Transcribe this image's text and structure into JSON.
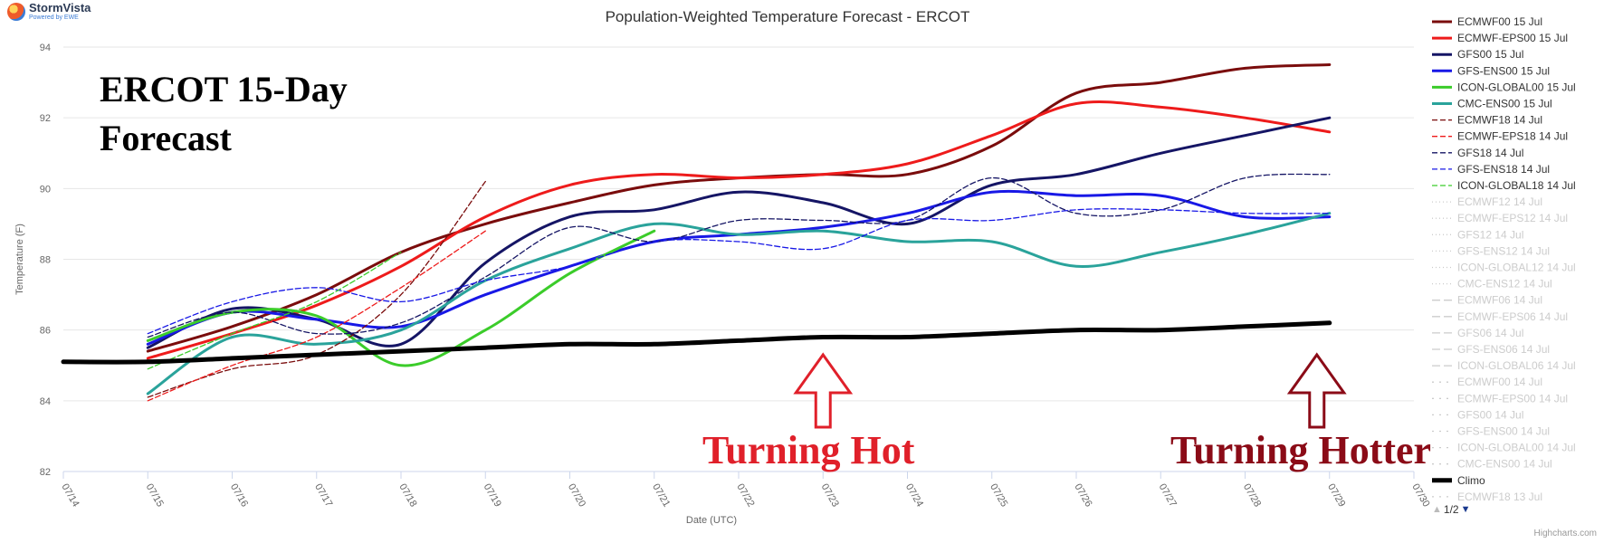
{
  "brand": {
    "name": "StormVista",
    "sub": "Powered by EWE"
  },
  "credit": "Highcharts.com",
  "pager": {
    "text": "1/2"
  },
  "chart_data": {
    "type": "line",
    "title": "Population-Weighted Temperature Forecast - ERCOT",
    "xlabel": "Date (UTC)",
    "ylabel": "Temperature (F)",
    "ylim": [
      82,
      94
    ],
    "yticks": [
      82,
      84,
      86,
      88,
      90,
      92,
      94
    ],
    "xlim": [
      0,
      16
    ],
    "xticks": [
      {
        "x": 0,
        "label": "07/14"
      },
      {
        "x": 1,
        "label": "07/15"
      },
      {
        "x": 2,
        "label": "07/16"
      },
      {
        "x": 3,
        "label": "07/17"
      },
      {
        "x": 4,
        "label": "07/18"
      },
      {
        "x": 5,
        "label": "07/19"
      },
      {
        "x": 6,
        "label": "07/20"
      },
      {
        "x": 7,
        "label": "07/21"
      },
      {
        "x": 8,
        "label": "07/22"
      },
      {
        "x": 9,
        "label": "07/23"
      },
      {
        "x": 10,
        "label": "07/24"
      },
      {
        "x": 11,
        "label": "07/25"
      },
      {
        "x": 12,
        "label": "07/26"
      },
      {
        "x": 13,
        "label": "07/27"
      },
      {
        "x": 14,
        "label": "07/28"
      },
      {
        "x": 15,
        "label": "07/29"
      },
      {
        "x": 16,
        "label": "07/30"
      }
    ],
    "grid": true,
    "legend_position": "right",
    "series": [
      {
        "name": "ECMWF00 15 Jul",
        "color": "#7a0c0c",
        "style": "solid",
        "width": 3,
        "points": [
          [
            1,
            85.4
          ],
          [
            2,
            86.1
          ],
          [
            3,
            87.0
          ],
          [
            4,
            88.2
          ],
          [
            5,
            89.0
          ],
          [
            6,
            89.6
          ],
          [
            7,
            90.1
          ],
          [
            8,
            90.3
          ],
          [
            9,
            90.4
          ],
          [
            10,
            90.4
          ],
          [
            11,
            91.2
          ],
          [
            12,
            92.7
          ],
          [
            13,
            93.0
          ],
          [
            14,
            93.4
          ],
          [
            15,
            93.5
          ]
        ]
      },
      {
        "name": "ECMWF-EPS00 15 Jul",
        "color": "#ee1b1b",
        "style": "solid",
        "width": 3,
        "points": [
          [
            1,
            85.2
          ],
          [
            2,
            85.9
          ],
          [
            3,
            86.7
          ],
          [
            4,
            87.8
          ],
          [
            5,
            89.2
          ],
          [
            6,
            90.1
          ],
          [
            7,
            90.4
          ],
          [
            8,
            90.3
          ],
          [
            9,
            90.4
          ],
          [
            10,
            90.7
          ],
          [
            11,
            91.5
          ],
          [
            12,
            92.4
          ],
          [
            13,
            92.3
          ],
          [
            14,
            92.0
          ],
          [
            15,
            91.6
          ]
        ]
      },
      {
        "name": "GFS00 15 Jul",
        "color": "#151565",
        "style": "solid",
        "width": 3,
        "points": [
          [
            1,
            85.5
          ],
          [
            2,
            86.6
          ],
          [
            3,
            86.3
          ],
          [
            4,
            85.6
          ],
          [
            5,
            87.9
          ],
          [
            6,
            89.2
          ],
          [
            7,
            89.4
          ],
          [
            8,
            89.9
          ],
          [
            9,
            89.6
          ],
          [
            10,
            89.0
          ],
          [
            11,
            90.1
          ],
          [
            12,
            90.4
          ],
          [
            13,
            91.0
          ],
          [
            14,
            91.5
          ],
          [
            15,
            92.0
          ]
        ]
      },
      {
        "name": "GFS-ENS00 15 Jul",
        "color": "#1818e6",
        "style": "solid",
        "width": 3,
        "points": [
          [
            1,
            85.6
          ],
          [
            2,
            86.5
          ],
          [
            3,
            86.3
          ],
          [
            4,
            86.1
          ],
          [
            5,
            87.0
          ],
          [
            6,
            87.8
          ],
          [
            7,
            88.5
          ],
          [
            8,
            88.7
          ],
          [
            9,
            88.9
          ],
          [
            10,
            89.3
          ],
          [
            11,
            89.9
          ],
          [
            12,
            89.8
          ],
          [
            13,
            89.8
          ],
          [
            14,
            89.2
          ],
          [
            15,
            89.2
          ]
        ]
      },
      {
        "name": "ICON-GLOBAL00 15 Jul",
        "color": "#3bcc2a",
        "style": "solid",
        "width": 3,
        "points": [
          [
            1,
            85.7
          ],
          [
            2,
            86.5
          ],
          [
            3,
            86.4
          ],
          [
            4,
            85.0
          ],
          [
            5,
            86.0
          ],
          [
            6,
            87.6
          ],
          [
            7,
            88.8
          ]
        ]
      },
      {
        "name": "CMC-ENS00 15 Jul",
        "color": "#2aa39b",
        "style": "solid",
        "width": 3,
        "points": [
          [
            1,
            84.2
          ],
          [
            2,
            85.8
          ],
          [
            3,
            85.6
          ],
          [
            4,
            86.0
          ],
          [
            5,
            87.4
          ],
          [
            6,
            88.3
          ],
          [
            7,
            89.0
          ],
          [
            8,
            88.7
          ],
          [
            9,
            88.8
          ],
          [
            10,
            88.5
          ],
          [
            11,
            88.5
          ],
          [
            12,
            87.8
          ],
          [
            13,
            88.2
          ],
          [
            14,
            88.7
          ],
          [
            15,
            89.3
          ]
        ]
      },
      {
        "name": "ECMWF18 14 Jul",
        "color": "#7a0c0c",
        "style": "dashed",
        "width": 1.3,
        "points": [
          [
            1,
            84.1
          ],
          [
            2,
            84.9
          ],
          [
            3,
            85.3
          ],
          [
            4,
            87.0
          ],
          [
            5,
            90.2
          ]
        ]
      },
      {
        "name": "ECMWF-EPS18 14 Jul",
        "color": "#ee1b1b",
        "style": "dashed",
        "width": 1.3,
        "points": [
          [
            1,
            84.0
          ],
          [
            2,
            85.0
          ],
          [
            3,
            85.8
          ],
          [
            4,
            87.2
          ],
          [
            5,
            88.8
          ]
        ]
      },
      {
        "name": "GFS18 14 Jul",
        "color": "#151565",
        "style": "dashed",
        "width": 1.3,
        "points": [
          [
            1,
            85.8
          ],
          [
            2,
            86.5
          ],
          [
            3,
            85.9
          ],
          [
            4,
            86.2
          ],
          [
            5,
            87.5
          ],
          [
            6,
            88.9
          ],
          [
            7,
            88.5
          ],
          [
            8,
            89.1
          ],
          [
            9,
            89.1
          ],
          [
            10,
            89.1
          ],
          [
            11,
            90.3
          ],
          [
            12,
            89.3
          ],
          [
            13,
            89.4
          ],
          [
            14,
            90.3
          ],
          [
            15,
            90.4
          ]
        ]
      },
      {
        "name": "GFS-ENS18 14 Jul",
        "color": "#1818e6",
        "style": "dashed",
        "width": 1.3,
        "points": [
          [
            1,
            85.9
          ],
          [
            2,
            86.8
          ],
          [
            3,
            87.2
          ],
          [
            4,
            86.8
          ],
          [
            5,
            87.4
          ],
          [
            6,
            87.8
          ],
          [
            7,
            88.5
          ],
          [
            8,
            88.5
          ],
          [
            9,
            88.3
          ],
          [
            10,
            89.1
          ],
          [
            11,
            89.1
          ],
          [
            12,
            89.4
          ],
          [
            13,
            89.4
          ],
          [
            14,
            89.3
          ],
          [
            15,
            89.3
          ]
        ]
      },
      {
        "name": "ICON-GLOBAL18 14 Jul",
        "color": "#3bcc2a",
        "style": "dashed",
        "width": 1.3,
        "points": [
          [
            1,
            84.9
          ],
          [
            2,
            85.9
          ],
          [
            3,
            86.8
          ],
          [
            4,
            88.2
          ]
        ]
      },
      {
        "name": "Climo",
        "color": "#000000",
        "style": "solid",
        "width": 5,
        "points": [
          [
            0,
            85.1
          ],
          [
            1,
            85.1
          ],
          [
            2,
            85.2
          ],
          [
            3,
            85.3
          ],
          [
            4,
            85.4
          ],
          [
            5,
            85.5
          ],
          [
            6,
            85.6
          ],
          [
            7,
            85.6
          ],
          [
            8,
            85.7
          ],
          [
            9,
            85.8
          ],
          [
            10,
            85.8
          ],
          [
            11,
            85.9
          ],
          [
            12,
            86.0
          ],
          [
            13,
            86.0
          ],
          [
            14,
            86.1
          ],
          [
            15,
            86.2
          ]
        ]
      }
    ],
    "legend": [
      {
        "name": "ECMWF00 15 Jul",
        "color": "#7a0c0c",
        "style": "solid",
        "visible": true
      },
      {
        "name": "ECMWF-EPS00 15 Jul",
        "color": "#ee1b1b",
        "style": "solid",
        "visible": true
      },
      {
        "name": "GFS00 15 Jul",
        "color": "#151565",
        "style": "solid",
        "visible": true
      },
      {
        "name": "GFS-ENS00 15 Jul",
        "color": "#1818e6",
        "style": "solid",
        "visible": true
      },
      {
        "name": "ICON-GLOBAL00 15 Jul",
        "color": "#3bcc2a",
        "style": "solid",
        "visible": true
      },
      {
        "name": "CMC-ENS00 15 Jul",
        "color": "#2aa39b",
        "style": "solid",
        "visible": true
      },
      {
        "name": "ECMWF18 14 Jul",
        "color": "#7a0c0c",
        "style": "dashed",
        "visible": true
      },
      {
        "name": "ECMWF-EPS18 14 Jul",
        "color": "#ee1b1b",
        "style": "dashed",
        "visible": true
      },
      {
        "name": "GFS18 14 Jul",
        "color": "#151565",
        "style": "dashed",
        "visible": true
      },
      {
        "name": "GFS-ENS18 14 Jul",
        "color": "#1818e6",
        "style": "dashed",
        "visible": true
      },
      {
        "name": "ICON-GLOBAL18 14 Jul",
        "color": "#3bcc2a",
        "style": "dashed",
        "visible": true
      },
      {
        "name": "ECMWF12 14 Jul",
        "color": "#cccccc",
        "style": "dotted",
        "visible": false
      },
      {
        "name": "ECMWF-EPS12 14 Jul",
        "color": "#cccccc",
        "style": "dotted",
        "visible": false
      },
      {
        "name": "GFS12 14 Jul",
        "color": "#cccccc",
        "style": "dotted",
        "visible": false
      },
      {
        "name": "GFS-ENS12 14 Jul",
        "color": "#cccccc",
        "style": "dotted",
        "visible": false
      },
      {
        "name": "ICON-GLOBAL12 14 Jul",
        "color": "#cccccc",
        "style": "dotted",
        "visible": false
      },
      {
        "name": "CMC-ENS12 14 Jul",
        "color": "#cccccc",
        "style": "dotted",
        "visible": false
      },
      {
        "name": "ECMWF06 14 Jul",
        "color": "#cccccc",
        "style": "longdash",
        "visible": false
      },
      {
        "name": "ECMWF-EPS06 14 Jul",
        "color": "#cccccc",
        "style": "longdash",
        "visible": false
      },
      {
        "name": "GFS06 14 Jul",
        "color": "#cccccc",
        "style": "longdash",
        "visible": false
      },
      {
        "name": "GFS-ENS06 14 Jul",
        "color": "#cccccc",
        "style": "longdash",
        "visible": false
      },
      {
        "name": "ICON-GLOBAL06 14 Jul",
        "color": "#cccccc",
        "style": "longdash",
        "visible": false
      },
      {
        "name": "ECMWF00 14 Jul",
        "color": "#cccccc",
        "style": "sparse",
        "visible": false
      },
      {
        "name": "ECMWF-EPS00 14 Jul",
        "color": "#cccccc",
        "style": "sparse",
        "visible": false
      },
      {
        "name": "GFS00 14 Jul",
        "color": "#cccccc",
        "style": "sparse",
        "visible": false
      },
      {
        "name": "GFS-ENS00 14 Jul",
        "color": "#cccccc",
        "style": "sparse",
        "visible": false
      },
      {
        "name": "ICON-GLOBAL00 14 Jul",
        "color": "#cccccc",
        "style": "sparse",
        "visible": false
      },
      {
        "name": "CMC-ENS00 14 Jul",
        "color": "#cccccc",
        "style": "sparse",
        "visible": false
      },
      {
        "name": "Climo",
        "color": "#000000",
        "style": "solid",
        "visible": true
      },
      {
        "name": "ECMWF18 13 Jul",
        "color": "#cccccc",
        "style": "sparse",
        "visible": false
      }
    ],
    "annotations": {
      "overlay_title_lines": [
        "ERCOT 15-Day",
        "Forecast"
      ],
      "callouts": [
        {
          "text": "Turning Hot",
          "color": "#e0202a",
          "arrow_x": 9.0
        },
        {
          "text": "Turning Hotter",
          "color": "#8b0b17",
          "arrow_x": 14.85
        }
      ]
    }
  }
}
